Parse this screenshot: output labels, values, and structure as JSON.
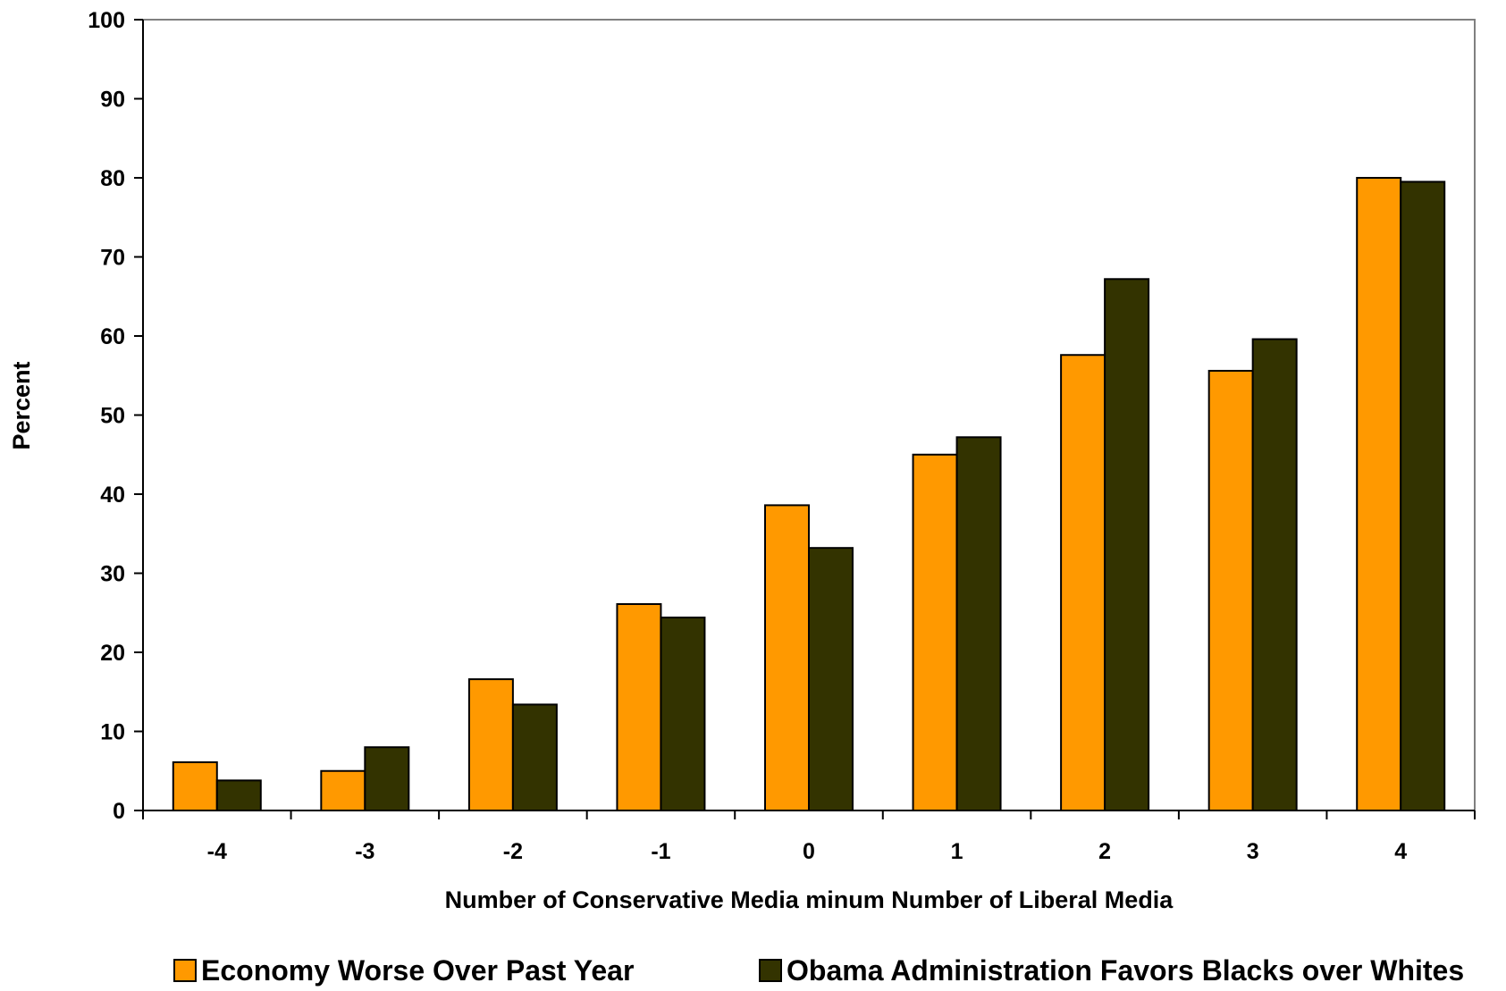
{
  "chart_data": {
    "type": "bar",
    "title": "",
    "xlabel": "Number of Conservative Media minum Number of Liberal Media",
    "ylabel": "Percent",
    "categories": [
      "-4",
      "-3",
      "-2",
      "-1",
      "0",
      "1",
      "2",
      "3",
      "4"
    ],
    "series": [
      {
        "name": "Economy Worse Over Past Year",
        "color": "#FF9900",
        "values": [
          6.1,
          5.0,
          16.6,
          26.1,
          38.6,
          45.0,
          57.6,
          55.6,
          80.0
        ]
      },
      {
        "name": "Obama Administration Favors Blacks over Whites",
        "color": "#333300",
        "values": [
          3.8,
          8.0,
          13.4,
          24.4,
          33.2,
          47.2,
          67.2,
          59.6,
          79.5
        ]
      }
    ],
    "ylim": [
      0,
      100
    ],
    "yticks": [
      "0",
      "10",
      "20",
      "30",
      "40",
      "50",
      "60",
      "70",
      "80",
      "90",
      "100"
    ],
    "grid": false,
    "legend_position": "bottom"
  }
}
